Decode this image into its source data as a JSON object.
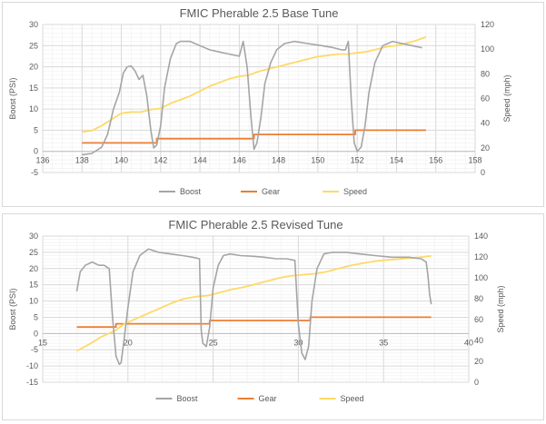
{
  "colors": {
    "boost": "#a5a5a5",
    "gear": "#ed7d31",
    "speed": "#ffd966"
  },
  "chart_data": [
    {
      "type": "line",
      "title": "FMIC Pherable 2.5 Base Tune",
      "xlabel": "",
      "ylabel": "Boost (PSI)",
      "y2label": "Speed (mph)",
      "xlim": [
        136,
        158
      ],
      "ylim": [
        -5,
        30
      ],
      "y2lim": [
        0,
        120
      ],
      "xticks": [
        "136",
        "138",
        "140",
        "142",
        "144",
        "146",
        "148",
        "150",
        "152",
        "154",
        "156",
        "158"
      ],
      "yticks": [
        "-5",
        "0",
        "5",
        "10",
        "15",
        "20",
        "25",
        "30"
      ],
      "y2ticks": [
        "0",
        "20",
        "40",
        "60",
        "80",
        "100",
        "120"
      ],
      "grid": true,
      "legend_position": "bottom",
      "legend": [
        "Boost",
        "Gear",
        "Speed"
      ],
      "series": [
        {
          "name": "Boost",
          "axis": "left",
          "x": [
            138.0,
            138.5,
            139.0,
            139.3,
            139.6,
            139.9,
            140.1,
            140.3,
            140.5,
            140.7,
            140.9,
            141.1,
            141.3,
            141.5,
            141.65,
            141.8,
            142.0,
            142.2,
            142.5,
            142.8,
            143.0,
            143.5,
            144.0,
            144.5,
            145.0,
            145.5,
            146.0,
            146.2,
            146.4,
            146.6,
            146.75,
            146.9,
            147.1,
            147.3,
            147.6,
            147.9,
            148.3,
            148.8,
            149.5,
            150.2,
            150.8,
            151.2,
            151.4,
            151.55,
            151.7,
            151.85,
            152.0,
            152.2,
            152.4,
            152.6,
            152.9,
            153.3,
            153.8,
            154.3,
            154.8,
            155.3
          ],
          "values": [
            -0.8,
            -0.5,
            1.0,
            4.0,
            10.0,
            14.0,
            18.5,
            20.0,
            20.2,
            19.0,
            17.0,
            18.0,
            13.0,
            5.0,
            0.8,
            1.5,
            6.0,
            15.0,
            22.0,
            25.5,
            26.0,
            26.0,
            25.0,
            24.0,
            23.5,
            23.0,
            22.5,
            26.0,
            20.0,
            8.0,
            0.5,
            2.0,
            8.0,
            16.0,
            21.0,
            24.0,
            25.5,
            26.0,
            25.5,
            25.0,
            24.5,
            24.0,
            24.0,
            26.0,
            12.0,
            2.0,
            0.0,
            1.0,
            6.0,
            14.0,
            21.0,
            25.0,
            26.0,
            25.5,
            25.0,
            24.5
          ]
        },
        {
          "name": "Gear",
          "axis": "left",
          "x": [
            138.0,
            141.8,
            141.8,
            146.75,
            146.75,
            151.9,
            151.9,
            155.5
          ],
          "values": [
            2,
            2,
            3,
            3,
            4,
            4,
            5,
            5
          ]
        },
        {
          "name": "Speed",
          "axis": "right",
          "x": [
            138.0,
            138.5,
            139.0,
            139.5,
            140.0,
            140.5,
            141.0,
            141.5,
            142.0,
            142.5,
            143.0,
            143.5,
            144.0,
            144.5,
            145.0,
            145.5,
            146.0,
            146.5,
            147.0,
            147.5,
            148.0,
            148.5,
            149.0,
            149.5,
            150.0,
            150.5,
            151.0,
            151.5,
            152.0,
            152.5,
            153.0,
            153.5,
            154.0,
            154.5,
            155.0,
            155.5
          ],
          "values": [
            33,
            34,
            38,
            43,
            48,
            49,
            49,
            51,
            52,
            56,
            59,
            62,
            66,
            70,
            73,
            76,
            78,
            79,
            82,
            84,
            86,
            88,
            90,
            92,
            94,
            95,
            96,
            96,
            97,
            98,
            100,
            102,
            103,
            105,
            107,
            110
          ]
        }
      ]
    },
    {
      "type": "line",
      "title": "FMIC Pherable 2.5 Revised Tune",
      "xlabel": "",
      "ylabel": "Boost (PSI)",
      "y2label": "Speed (mph)",
      "xlim": [
        15,
        40
      ],
      "ylim": [
        -15,
        30
      ],
      "y2lim": [
        0,
        140
      ],
      "xticks": [
        "15",
        "20",
        "25",
        "30",
        "35",
        "40"
      ],
      "yticks": [
        "-15",
        "-10",
        "-5",
        "0",
        "5",
        "10",
        "15",
        "20",
        "25",
        "30"
      ],
      "y2ticks": [
        "0",
        "20",
        "40",
        "60",
        "80",
        "100",
        "120",
        "140"
      ],
      "grid": true,
      "legend_position": "bottom",
      "legend": [
        "Boost",
        "Gear",
        "Speed"
      ],
      "series": [
        {
          "name": "Boost",
          "axis": "left",
          "x": [
            17.0,
            17.2,
            17.5,
            17.9,
            18.3,
            18.6,
            18.9,
            19.1,
            19.3,
            19.5,
            19.6,
            19.8,
            20.0,
            20.3,
            20.7,
            21.2,
            21.8,
            22.5,
            23.2,
            23.8,
            24.2,
            24.3,
            24.4,
            24.6,
            24.8,
            25.0,
            25.3,
            25.6,
            26.0,
            26.6,
            27.3,
            28.0,
            28.7,
            29.3,
            29.8,
            30.0,
            30.2,
            30.4,
            30.6,
            30.8,
            31.1,
            31.5,
            32.0,
            32.8,
            33.6,
            34.5,
            35.5,
            36.5,
            37.2,
            37.5,
            37.6,
            37.7,
            37.8
          ],
          "values": [
            13.0,
            19.0,
            21.0,
            22.0,
            21.0,
            21.0,
            20.0,
            5.0,
            -7.0,
            -9.5,
            -9.0,
            -1.0,
            8.0,
            19.0,
            24.0,
            26.0,
            25.0,
            24.5,
            24.0,
            23.5,
            23.0,
            1.0,
            -3.0,
            -4.0,
            2.0,
            14.0,
            21.0,
            24.0,
            24.5,
            24.0,
            23.8,
            23.5,
            23.0,
            23.0,
            22.5,
            3.0,
            -6.0,
            -8.0,
            -4.0,
            10.0,
            20.0,
            24.5,
            25.0,
            25.0,
            24.5,
            24.0,
            23.5,
            23.5,
            23.0,
            22.0,
            18.0,
            12.0,
            9.0
          ]
        },
        {
          "name": "Gear",
          "axis": "left",
          "x": [
            17.0,
            19.3,
            19.3,
            24.8,
            24.8,
            30.7,
            30.7,
            37.8
          ],
          "values": [
            2,
            2,
            3,
            3,
            4,
            4,
            5,
            5
          ]
        },
        {
          "name": "Speed",
          "axis": "right",
          "x": [
            17.0,
            17.8,
            18.5,
            19.2,
            19.8,
            20.5,
            21.2,
            21.9,
            22.6,
            23.3,
            24.0,
            24.7,
            25.4,
            26.1,
            26.8,
            27.5,
            28.2,
            28.9,
            29.6,
            30.3,
            31.0,
            31.7,
            32.4,
            33.1,
            33.8,
            34.5,
            35.2,
            35.9,
            36.6,
            37.3,
            37.8
          ],
          "values": [
            30,
            37,
            44,
            49,
            56,
            61,
            66,
            71,
            76,
            80,
            82,
            83,
            86,
            89,
            91,
            94,
            97,
            100,
            102,
            103,
            104,
            106,
            109,
            112,
            114,
            116,
            117,
            118,
            119,
            120,
            121
          ]
        }
      ]
    }
  ]
}
